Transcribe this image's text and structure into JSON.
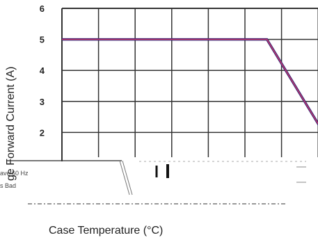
{
  "chart_data": {
    "type": "line",
    "title": "",
    "xlabel": "Case Temperature (°C)",
    "ylabel": "ge Forward Current (A)",
    "ylim": [
      1,
      6
    ],
    "y_ticks": [
      6,
      5,
      4,
      3,
      2
    ],
    "grid": true,
    "series": [
      {
        "x": [
          0,
          5.6,
          7.4
        ],
        "y": [
          5,
          5,
          1.5
        ]
      }
    ],
    "annotation_fragments": [
      "ave 60 Hz",
      "s Bad"
    ],
    "colors": {
      "curve_outer": "#3a2a7a",
      "curve_inner": "#c8386a",
      "grid": "#333333"
    }
  }
}
